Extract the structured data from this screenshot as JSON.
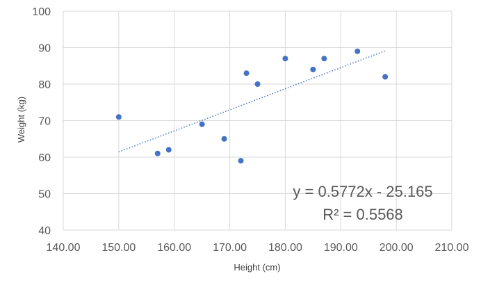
{
  "chart_data": {
    "type": "scatter",
    "title": "",
    "xlabel": "Height (cm)",
    "ylabel": "Weight (kg)",
    "xlim": [
      140,
      210
    ],
    "ylim": [
      40,
      100
    ],
    "xticks": [
      "140.00",
      "150.00",
      "160.00",
      "170.00",
      "180.00",
      "190.00",
      "200.00",
      "210.00"
    ],
    "yticks": [
      "40",
      "50",
      "60",
      "70",
      "80",
      "90",
      "100"
    ],
    "grid": true,
    "legend": "none",
    "point_color": "#4472C4",
    "gridline_color": "#D9D9D9",
    "series": [
      {
        "points": [
          {
            "x": 150,
            "y": 71
          },
          {
            "x": 157,
            "y": 61
          },
          {
            "x": 159,
            "y": 62
          },
          {
            "x": 165,
            "y": 69
          },
          {
            "x": 169,
            "y": 65
          },
          {
            "x": 172,
            "y": 59
          },
          {
            "x": 173,
            "y": 83
          },
          {
            "x": 175,
            "y": 80
          },
          {
            "x": 180,
            "y": 87
          },
          {
            "x": 185,
            "y": 84
          },
          {
            "x": 187,
            "y": 87
          },
          {
            "x": 193,
            "y": 89
          },
          {
            "x": 198,
            "y": 82
          }
        ]
      }
    ],
    "trendline": {
      "type": "linear",
      "slope": 0.5772,
      "intercept": -25.165,
      "x_range": [
        150,
        198
      ],
      "equation_label": "y = 0.5772x - 25.165",
      "r2_label": "R² = 0.5568",
      "style": "dotted"
    }
  }
}
